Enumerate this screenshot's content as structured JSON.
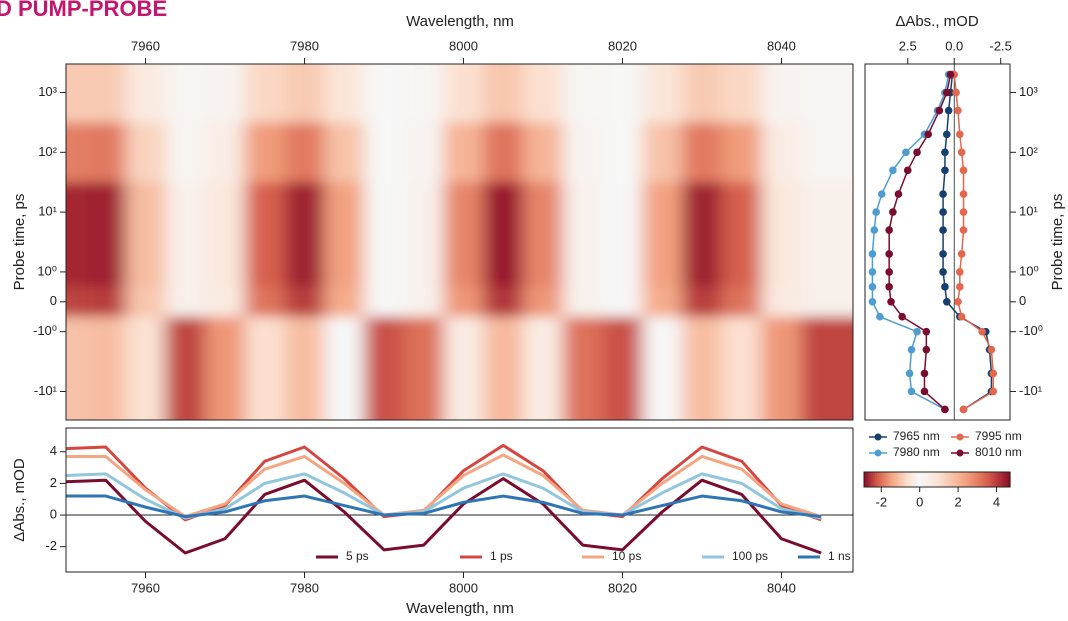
{
  "title": "D PUMP-PROBE",
  "chart_data": [
    {
      "type": "heatmap",
      "xlabel": "Wavelength, nm",
      "ylabel": "Probe time, ps",
      "xlim": [
        7950,
        8049
      ],
      "xticks": [
        7960,
        7980,
        8000,
        8020,
        8040
      ],
      "ylim": [
        -30,
        3000
      ],
      "yscale": "symlog",
      "linthresh": 1,
      "linscale": 0.5,
      "yticks": [
        {
          "value": 1000,
          "label": "10³"
        },
        {
          "value": 100,
          "label": "10²"
        },
        {
          "value": 10,
          "label": "10¹"
        },
        {
          "value": 1,
          "label": "10⁰"
        },
        0,
        {
          "value": -1,
          "label": "-10⁰"
        },
        {
          "value": -10,
          "label": "-10¹"
        }
      ],
      "cmap": "RdBu_r",
      "x": [
        7950,
        7955,
        7960,
        7965,
        7970,
        7975,
        7980,
        7985,
        7990,
        7995,
        8000,
        8005,
        8010,
        8015,
        8020,
        8025,
        8030,
        8035,
        8040,
        8045
      ],
      "y": [
        1000,
        100,
        10,
        1,
        0,
        -1,
        -10
      ],
      "z": [
        [
          1.5,
          1.5,
          0.6,
          -0.1,
          0.2,
          1.2,
          1.5,
          0.8,
          0.0,
          0.1,
          1.0,
          1.6,
          1.0,
          0.1,
          0.0,
          0.8,
          1.5,
          1.2,
          0.2,
          -0.1
        ],
        [
          3.0,
          3.1,
          1.3,
          -0.1,
          0.5,
          2.5,
          3.1,
          1.7,
          0.0,
          0.2,
          2.0,
          3.2,
          2.0,
          0.2,
          0.0,
          1.7,
          3.1,
          2.5,
          0.5,
          -0.1
        ],
        [
          4.3,
          4.4,
          1.8,
          -0.2,
          0.7,
          3.5,
          4.4,
          2.4,
          0.0,
          0.3,
          2.9,
          4.5,
          2.9,
          0.3,
          0.0,
          2.4,
          4.4,
          3.5,
          0.7,
          -0.2
        ],
        [
          4.3,
          4.4,
          1.8,
          -0.2,
          0.7,
          3.5,
          4.4,
          2.4,
          0.0,
          0.3,
          2.9,
          4.5,
          2.9,
          0.3,
          0.0,
          2.4,
          4.4,
          3.5,
          0.7,
          -0.2
        ],
        [
          3.9,
          4.0,
          1.6,
          -0.2,
          0.6,
          3.2,
          4.0,
          2.2,
          0.0,
          0.3,
          2.6,
          4.1,
          2.6,
          0.3,
          0.0,
          2.2,
          4.0,
          3.2,
          0.6,
          -0.2
        ],
        [
          1.7,
          1.8,
          -0.6,
          -2.4,
          -1.6,
          1.0,
          1.8,
          0.0,
          -2.3,
          -2.0,
          0.5,
          1.9,
          0.5,
          -2.0,
          -2.3,
          0.0,
          1.8,
          1.0,
          -1.6,
          -2.4
        ],
        [
          1.7,
          1.8,
          -0.6,
          -2.4,
          -1.6,
          1.0,
          1.8,
          0.0,
          -2.3,
          -2.0,
          0.5,
          1.9,
          0.5,
          -2.0,
          -2.3,
          0.0,
          1.8,
          1.0,
          -1.6,
          -2.4
        ]
      ],
      "colorbar": {
        "lim": [
          -2.9,
          4.7
        ],
        "ticks": [
          -2,
          0,
          2,
          4
        ]
      }
    },
    {
      "type": "scatter",
      "xlabel": "ΔAbs., mOD",
      "ylabel": "Probe time, ps",
      "xlim": [
        4.8,
        -3.0
      ],
      "xticks": [
        2.5,
        {
          "value": 0,
          "label": "0.0"
        },
        -2.5
      ],
      "ylim": [
        -30,
        3000
      ],
      "yscale": "symlog",
      "linthresh": 1,
      "linscale": 0.5,
      "yticks": [
        {
          "value": 1000,
          "label": "10³"
        },
        {
          "value": 100,
          "label": "10²"
        },
        {
          "value": 10,
          "label": "10¹"
        },
        {
          "value": 1,
          "label": "10⁰"
        },
        0,
        {
          "value": -1,
          "label": "-10⁰"
        },
        {
          "value": -10,
          "label": "-10¹"
        }
      ],
      "y": [
        -20,
        -10,
        -5,
        -2,
        -1,
        -0.5,
        0,
        0.5,
        1,
        2,
        5,
        10,
        20,
        50,
        100,
        200,
        500,
        1000,
        2000
      ],
      "series": [
        {
          "name": "7965 nm",
          "color": "#173f6e",
          "values": [
            -0.5,
            -2.0,
            -2.0,
            -1.9,
            -1.7,
            -0.3,
            0.4,
            0.5,
            0.6,
            0.6,
            0.6,
            0.6,
            0.6,
            0.5,
            0.5,
            0.4,
            0.3,
            0.2,
            0.1
          ]
        },
        {
          "name": "7980 nm",
          "color": "#4d9dd3",
          "values": [
            0.5,
            2.3,
            2.4,
            2.3,
            2.0,
            4.0,
            4.4,
            4.4,
            4.4,
            4.4,
            4.3,
            4.2,
            3.9,
            3.3,
            2.6,
            1.6,
            0.9,
            0.5,
            0.3
          ]
        },
        {
          "name": "7995 nm",
          "color": "#e2674c",
          "values": [
            -0.5,
            -2.1,
            -2.1,
            -2.0,
            -1.5,
            -0.4,
            -0.2,
            -0.3,
            -0.3,
            -0.4,
            -0.5,
            -0.5,
            -0.5,
            -0.5,
            -0.4,
            -0.3,
            -0.2,
            -0.1,
            0.0
          ]
        },
        {
          "name": "8010 nm",
          "color": "#7a0c2e",
          "values": [
            0.5,
            1.6,
            1.6,
            1.5,
            1.5,
            2.8,
            3.4,
            3.5,
            3.5,
            3.5,
            3.5,
            3.3,
            3.0,
            2.5,
            2.0,
            1.4,
            0.8,
            0.4,
            0.2
          ]
        }
      ]
    },
    {
      "type": "line",
      "xlabel": "Wavelength, nm",
      "ylabel": "ΔAbs., mOD",
      "xlim": [
        7950,
        8049
      ],
      "xticks": [
        7960,
        7980,
        8000,
        8020,
        8040
      ],
      "ylim": [
        -3.6,
        5.5
      ],
      "yticks": [
        4,
        2,
        0,
        -2
      ],
      "x": [
        7950,
        7955,
        7960,
        7965,
        7970,
        7975,
        7980,
        7985,
        7990,
        7995,
        8000,
        8005,
        8010,
        8015,
        8020,
        8025,
        8030,
        8035,
        8040,
        8045
      ],
      "series": [
        {
          "name": "5 ps",
          "color": "#7a0c2e",
          "values": [
            2.1,
            2.2,
            -0.4,
            -2.4,
            -1.5,
            1.3,
            2.2,
            0.2,
            -2.2,
            -1.9,
            0.7,
            2.3,
            0.7,
            -1.9,
            -2.2,
            0.2,
            2.2,
            1.3,
            -1.5,
            -2.4
          ]
        },
        {
          "name": "1 ps",
          "color": "#d6463e",
          "values": [
            4.2,
            4.3,
            1.7,
            -0.3,
            0.6,
            3.4,
            4.3,
            2.3,
            -0.1,
            0.2,
            2.8,
            4.4,
            2.8,
            0.2,
            -0.1,
            2.3,
            4.3,
            3.4,
            0.6,
            -0.3
          ]
        },
        {
          "name": "10 ps",
          "color": "#f4a582",
          "values": [
            3.7,
            3.7,
            1.6,
            -0.1,
            0.7,
            2.9,
            3.7,
            2.0,
            0.0,
            0.3,
            2.5,
            3.8,
            2.5,
            0.3,
            0.0,
            2.0,
            3.7,
            2.9,
            0.7,
            -0.1
          ]
        },
        {
          "name": "100 ps",
          "color": "#92c5de",
          "values": [
            2.5,
            2.6,
            1.0,
            -0.2,
            0.4,
            2.0,
            2.6,
            1.4,
            0.0,
            0.2,
            1.7,
            2.6,
            1.7,
            0.2,
            0.0,
            1.4,
            2.6,
            2.0,
            0.4,
            -0.2
          ]
        },
        {
          "name": "1 ns",
          "color": "#2e75b6",
          "values": [
            1.2,
            1.2,
            0.5,
            -0.1,
            0.2,
            0.9,
            1.2,
            0.6,
            0.0,
            0.1,
            0.8,
            1.2,
            0.8,
            0.1,
            0.0,
            0.6,
            1.2,
            0.9,
            0.2,
            -0.1
          ]
        }
      ]
    }
  ]
}
